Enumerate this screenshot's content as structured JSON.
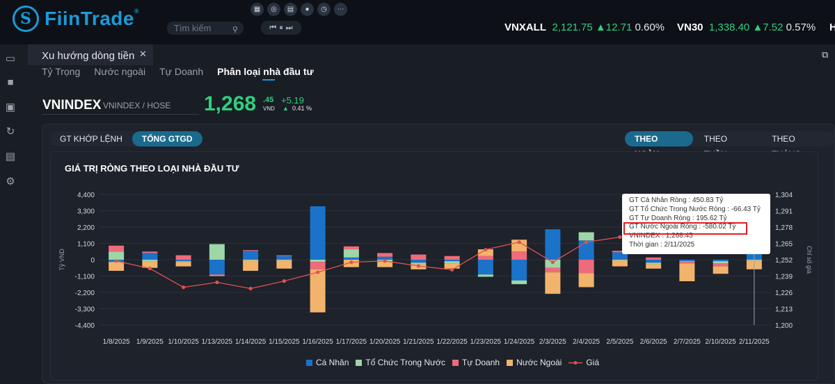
{
  "app": {
    "logo_mark": "S",
    "logo_text": "FiinTrade",
    "logo_reg": "®",
    "search_placeholder": "Tìm kiếm",
    "toolbar_icons": [
      "grid-icon",
      "search-chart-icon",
      "calendar-icon",
      "dot-icon",
      "clock-icon",
      "more-icon"
    ],
    "player": [
      "⏮",
      "⏸",
      "⏭"
    ]
  },
  "tickers": [
    {
      "name": "VNXALL",
      "value": "2,121.75",
      "change": "▲12.71",
      "pct": "0.60%"
    },
    {
      "name": "VN30",
      "value": "1,338.40",
      "change": "▲7.52",
      "pct": "0.57%"
    },
    {
      "name": "H",
      "value": "",
      "change": "",
      "pct": ""
    }
  ],
  "nav_icons": [
    "window-icon",
    "camera-icon",
    "save-icon",
    "refresh-icon",
    "print-icon",
    "gear-icon"
  ],
  "panel": {
    "title": "Xu hướng dòng tiền",
    "close": "✕",
    "subtabs": [
      "Tỷ Trọng",
      "Nước ngoài",
      "Tự Doanh",
      "Phân loại nhà đầu tư"
    ],
    "active_subtab": 3
  },
  "index": {
    "name": "VNINDEX",
    "sub": "VNINDEX / HOSE",
    "price_main": "1,268",
    "price_dec": ".45",
    "unit": "VND",
    "change": "+5.19",
    "pct": "0.41 %",
    "pct_arrow": "▲"
  },
  "toggles": {
    "value_type": [
      "GT KHỚP LỆNH",
      "TỔNG GTGD"
    ],
    "value_type_selected": 1,
    "period": [
      "THEO NGÀY",
      "THEO TUẦN",
      "THEO THÁNG"
    ],
    "period_selected": 0
  },
  "tooltip": {
    "lines": [
      "GT Cá Nhân Ròng  : 450.83 Tỷ",
      "GT Tổ Chức Trong Nước Ròng : -66.43 Tỷ",
      "GT Tự Doanh Ròng : 195.62 Tỷ",
      "GT Nước Ngoài Ròng : -580.02 Tỷ",
      "VNINDEX : 1,268.45",
      "Thời gian : 2/11/2025"
    ],
    "highlight_line": 3
  },
  "chart_data": {
    "type": "bar",
    "title": "GIÁ TRỊ RÒNG THEO LOẠI NHÀ ĐẦU TƯ",
    "ylabel": "Tỷ VND",
    "y2label": "Chỉ số giá",
    "ylim": [
      -4400,
      4400
    ],
    "yticks": [
      "4,400",
      "3,300",
      "2,200",
      "1,100",
      "0",
      "-1,100",
      "-2,200",
      "-3,300",
      "-4,400"
    ],
    "y2lim": [
      1200,
      1304
    ],
    "y2ticks": [
      "1,304",
      "1,291",
      "1,278",
      "1,265",
      "1,252",
      "1,239",
      "1,226",
      "1,213",
      "1,200"
    ],
    "categories": [
      "1/8/2025",
      "1/9/2025",
      "1/10/2025",
      "1/13/2025",
      "1/14/2025",
      "1/15/2025",
      "1/16/2025",
      "1/17/2025",
      "1/20/2025",
      "1/21/2025",
      "1/22/2025",
      "1/23/2025",
      "1/24/2025",
      "2/3/2025",
      "2/4/2025",
      "2/5/2025",
      "2/6/2025",
      "2/7/2025",
      "2/10/2025",
      "2/11/2025"
    ],
    "series": [
      {
        "name": "Cá Nhân",
        "kind": "bar",
        "color": "#1a73c9",
        "values": [
          -150,
          450,
          -100,
          -1000,
          600,
          250,
          3600,
          150,
          200,
          -200,
          -100,
          -1000,
          -1400,
          2050,
          1300,
          500,
          -200,
          -100,
          -100,
          451
        ]
      },
      {
        "name": "Tổ Chức Trong Nước",
        "kind": "bar",
        "color": "#9fd6a8",
        "values": [
          550,
          -100,
          -50,
          1050,
          -50,
          -50,
          -150,
          550,
          -100,
          -100,
          -150,
          -150,
          -250,
          -550,
          550,
          -50,
          -100,
          -50,
          -150,
          -66
        ]
      },
      {
        "name": "Tự Doanh",
        "kind": "bar",
        "color": "#ef6b7b",
        "values": [
          400,
          100,
          300,
          -50,
          50,
          50,
          -500,
          200,
          250,
          350,
          250,
          250,
          550,
          -300,
          -900,
          100,
          150,
          -100,
          -200,
          196
        ]
      },
      {
        "name": "Nước Ngoài",
        "kind": "bar",
        "color": "#f2b36c",
        "values": [
          -600,
          -450,
          -300,
          -50,
          -700,
          -550,
          -2900,
          -500,
          -400,
          -350,
          -350,
          450,
          800,
          -1450,
          -950,
          -400,
          -300,
          -1200,
          -500,
          -580
        ]
      },
      {
        "name": "Giá",
        "kind": "line",
        "color": "#e0524f",
        "values": [
          1251,
          1245,
          1230,
          1234,
          1229,
          1235,
          1242,
          1250,
          1251,
          1247,
          1244,
          1260,
          1266,
          1250,
          1266,
          1270,
          1273,
          1278,
          1265,
          1268.45
        ]
      }
    ],
    "legend_position": "bottom"
  }
}
